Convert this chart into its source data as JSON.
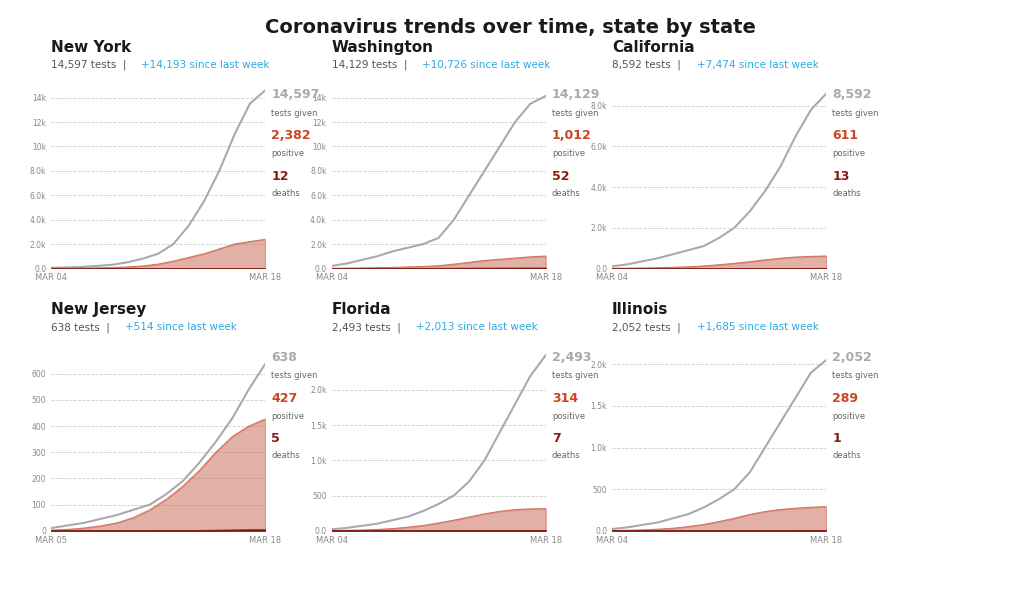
{
  "title": "Coronavirus trends over time, state by state",
  "states": [
    {
      "name": "New York",
      "tests": 14597,
      "increase": "+14,193",
      "positive": 2382,
      "deaths": 12,
      "x_start_label": "MAR 04",
      "x_end_label": "MAR 18",
      "n_points": 15,
      "tests_data": [
        50,
        80,
        120,
        200,
        300,
        500,
        800,
        1200,
        2000,
        3500,
        5500,
        8000,
        11000,
        13500,
        14597
      ],
      "positive_data": [
        5,
        10,
        20,
        40,
        70,
        120,
        200,
        350,
        600,
        900,
        1200,
        1600,
        2000,
        2200,
        2382
      ],
      "deaths_data": [
        0,
        0,
        0,
        0,
        0,
        0,
        1,
        1,
        2,
        3,
        5,
        7,
        9,
        11,
        12
      ],
      "ylim": [
        0,
        15000
      ],
      "yticks": [
        0,
        2000,
        4000,
        6000,
        8000,
        10000,
        12000,
        14000
      ],
      "ytick_labels": [
        "0.0",
        "2.0k",
        "4.0k",
        "6.0k",
        "8.0k",
        "10k",
        "12k",
        "14k"
      ]
    },
    {
      "name": "Washington",
      "tests": 14129,
      "increase": "+10,726",
      "positive": 1012,
      "deaths": 52,
      "x_start_label": "MAR 04",
      "x_end_label": "MAR 18",
      "n_points": 15,
      "tests_data": [
        200,
        400,
        700,
        1000,
        1400,
        1700,
        2000,
        2500,
        4000,
        6000,
        8000,
        10000,
        12000,
        13500,
        14129
      ],
      "positive_data": [
        10,
        20,
        40,
        60,
        80,
        120,
        160,
        220,
        350,
        500,
        650,
        750,
        850,
        950,
        1012
      ],
      "deaths_data": [
        1,
        2,
        3,
        5,
        8,
        12,
        18,
        25,
        32,
        38,
        43,
        47,
        49,
        51,
        52
      ],
      "ylim": [
        0,
        15000
      ],
      "yticks": [
        0,
        2000,
        4000,
        6000,
        8000,
        10000,
        12000,
        14000
      ],
      "ytick_labels": [
        "0.0",
        "2.0k",
        "4.0k",
        "6.0k",
        "8.0k",
        "10k",
        "12k",
        "14k"
      ]
    },
    {
      "name": "California",
      "tests": 8592,
      "increase": "+7,474",
      "positive": 611,
      "deaths": 13,
      "x_start_label": "MAR 04",
      "x_end_label": "MAR 18",
      "n_points": 15,
      "tests_data": [
        100,
        200,
        350,
        500,
        700,
        900,
        1100,
        1500,
        2000,
        2800,
        3800,
        5000,
        6500,
        7800,
        8592
      ],
      "positive_data": [
        5,
        10,
        20,
        35,
        55,
        80,
        120,
        180,
        250,
        330,
        420,
        500,
        560,
        590,
        611
      ],
      "deaths_data": [
        0,
        0,
        0,
        0,
        1,
        1,
        2,
        3,
        4,
        6,
        8,
        9,
        11,
        12,
        13
      ],
      "ylim": [
        0,
        9000
      ],
      "yticks": [
        0,
        2000,
        4000,
        6000,
        8000
      ],
      "ytick_labels": [
        "0.0",
        "2.0k",
        "4.0k",
        "6.0k",
        "8.0k"
      ]
    },
    {
      "name": "New Jersey",
      "tests": 638,
      "increase": "+514",
      "positive": 427,
      "deaths": 5,
      "x_start_label": "MAR 05",
      "x_end_label": "MAR 18",
      "n_points": 14,
      "tests_data": [
        10,
        20,
        30,
        45,
        60,
        80,
        100,
        140,
        190,
        260,
        340,
        430,
        540,
        638
      ],
      "positive_data": [
        2,
        5,
        10,
        18,
        30,
        50,
        80,
        120,
        170,
        230,
        300,
        360,
        400,
        427
      ],
      "deaths_data": [
        0,
        0,
        0,
        0,
        0,
        0,
        0,
        1,
        1,
        2,
        3,
        4,
        5,
        5
      ],
      "ylim": [
        0,
        700
      ],
      "yticks": [
        0,
        100,
        200,
        300,
        400,
        500,
        600
      ],
      "ytick_labels": [
        "0",
        "100",
        "200",
        "300",
        "400",
        "500",
        "600"
      ]
    },
    {
      "name": "Florida",
      "tests": 2493,
      "increase": "+2,013",
      "positive": 314,
      "deaths": 7,
      "x_start_label": "MAR 04",
      "x_end_label": "MAR 18",
      "n_points": 15,
      "tests_data": [
        20,
        40,
        70,
        100,
        150,
        200,
        280,
        380,
        500,
        700,
        1000,
        1400,
        1800,
        2200,
        2493
      ],
      "positive_data": [
        2,
        5,
        10,
        18,
        30,
        50,
        75,
        110,
        150,
        195,
        240,
        275,
        300,
        310,
        314
      ],
      "deaths_data": [
        0,
        0,
        0,
        0,
        0,
        0,
        0,
        1,
        2,
        3,
        4,
        5,
        6,
        7,
        7
      ],
      "ylim": [
        0,
        2600
      ],
      "yticks": [
        0,
        500,
        1000,
        1500,
        2000
      ],
      "ytick_labels": [
        "0.0",
        "500",
        "1.0k",
        "1.5k",
        "2.0k"
      ]
    },
    {
      "name": "Illinois",
      "tests": 2052,
      "increase": "+1,685",
      "positive": 289,
      "deaths": 1,
      "x_start_label": "MAR 04",
      "x_end_label": "MAR 18",
      "n_points": 15,
      "tests_data": [
        20,
        40,
        70,
        100,
        150,
        200,
        280,
        380,
        500,
        700,
        1000,
        1300,
        1600,
        1900,
        2052
      ],
      "positive_data": [
        2,
        5,
        10,
        18,
        30,
        50,
        75,
        110,
        150,
        195,
        230,
        255,
        270,
        282,
        289
      ],
      "deaths_data": [
        0,
        0,
        0,
        0,
        0,
        0,
        0,
        0,
        0,
        0,
        0,
        0,
        0,
        1,
        1
      ],
      "ylim": [
        0,
        2200
      ],
      "yticks": [
        0,
        500,
        1000,
        1500,
        2000
      ],
      "ytick_labels": [
        "0.0",
        "500",
        "1.0k",
        "1.5k",
        "2.0k"
      ]
    }
  ],
  "bg_color": "#ffffff",
  "tests_line_color": "#aaaaaa",
  "positive_fill_color": "#c9634c",
  "positive_fill_alpha": 0.5,
  "deaths_fill_color": "#7a1a10",
  "deaths_fill_alpha": 0.9,
  "tests_label_color": "#aaaaaa",
  "positive_label_color": "#cc4422",
  "deaths_label_color": "#8b1a10",
  "state_name_color": "#1a1a1a",
  "subtitle_tests_color": "#555555",
  "subtitle_increase_color": "#29abe2",
  "grid_color": "#cccccc",
  "tick_color": "#888888",
  "title_color": "#1a1a1a",
  "sublabel_color": "#666666"
}
